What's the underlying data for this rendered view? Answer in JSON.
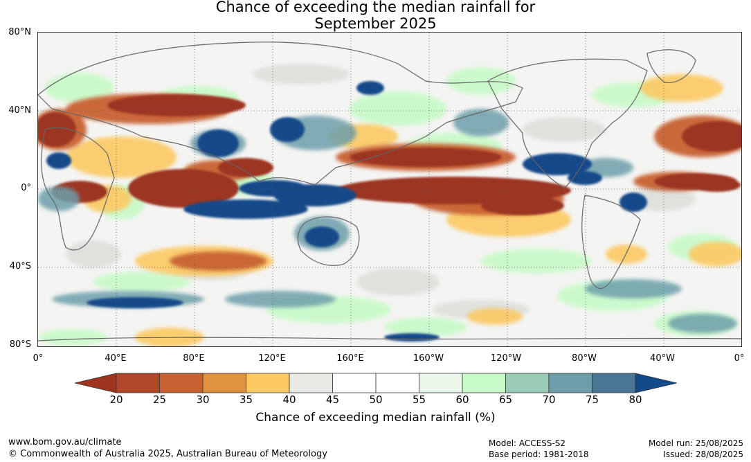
{
  "title": {
    "line1": "Chance of exceeding the median rainfall for",
    "line2": "September 2025"
  },
  "axes": {
    "lat_labels": [
      "80°N",
      "40°N",
      "0°",
      "40°S",
      "80°S"
    ],
    "lon_labels": [
      "0°",
      "40°E",
      "80°E",
      "120°E",
      "160°E",
      "160°W",
      "120°W",
      "80°W",
      "40°W",
      "0°"
    ]
  },
  "colorbar": {
    "label": "Chance of exceeding median rainfall (%)",
    "ticks": [
      "20",
      "25",
      "30",
      "35",
      "40",
      "45",
      "50",
      "55",
      "60",
      "65",
      "70",
      "75",
      "80"
    ],
    "colors": [
      "#9c3420",
      "#b0472a",
      "#c86232",
      "#e0913f",
      "#fcc964",
      "#e8e8e4",
      "#ffffff",
      "#ffffff",
      "#ebf7eb",
      "#c6fac6",
      "#99cbb6",
      "#6d9faa",
      "#4b7594",
      "#134a89"
    ]
  },
  "footer": {
    "website": "www.bom.gov.au/climate",
    "copyright": "© Commonwealth of Australia 2025, Australian Bureau of Meteorology",
    "model": "Model: ACCESS-S2",
    "base_period": "Base period: 1981-2018",
    "model_run": "Model run: 25/08/2025",
    "issued": "Issued: 28/08/2025"
  },
  "map": {
    "projection": "equirectangular",
    "colors": {
      "dry_strong": "#9c3420",
      "dry": "#c86232",
      "dry_light": "#fcc964",
      "neutral": "#e8e8e4",
      "wet_light": "#c6fac6",
      "wet": "#6d9faa",
      "wet_strong": "#134a89"
    }
  }
}
